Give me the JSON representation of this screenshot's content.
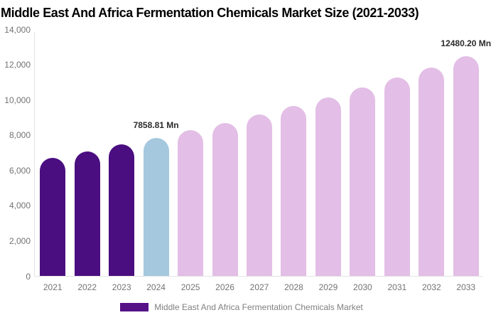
{
  "title": "Middle East And Africa Fermentation Chemicals Market Size (2021-2033)",
  "legend": {
    "label": "Middle East And Africa Fermentation Chemicals Market"
  },
  "colors": {
    "historical": "#4A0E80",
    "base_year": "#A5C8DE",
    "forecast": "#E3BEE6",
    "legend_swatch": "#561287",
    "axis_line": "#E3E3E3",
    "tick_text": "#737373",
    "title_text": "#000000",
    "annotation_text": "#2B2B2B",
    "legend_text": "#808080"
  },
  "chart_data": {
    "type": "bar",
    "title": "Middle East And Africa Fermentation Chemicals Market Size (2021-2033)",
    "unit": "Mn",
    "categories": [
      "2021",
      "2022",
      "2023",
      "2024",
      "2025",
      "2026",
      "2027",
      "2028",
      "2029",
      "2030",
      "2031",
      "2032",
      "2033"
    ],
    "values": [
      6735,
      7090,
      7465,
      7858.81,
      8273,
      8710,
      9169,
      9652,
      10161,
      10696,
      11260,
      11853,
      12480.2
    ],
    "bar_roles": [
      "historical",
      "historical",
      "historical",
      "base_year",
      "forecast",
      "forecast",
      "forecast",
      "forecast",
      "forecast",
      "forecast",
      "forecast",
      "forecast",
      "forecast"
    ],
    "ylim": [
      0,
      14000
    ],
    "y_tick_labels": [
      "0",
      "2,000",
      "4,000",
      "6,000",
      "8,000",
      "10,000",
      "12,000",
      "14,000"
    ],
    "grid": false,
    "legend_position": "bottom",
    "legend_entries": [
      "Middle East And Africa Fermentation Chemicals Market"
    ],
    "annotations": [
      {
        "category": "2024",
        "text": "7858.81 Mn"
      },
      {
        "category": "2033",
        "text": "12480.20 Mn"
      }
    ]
  }
}
